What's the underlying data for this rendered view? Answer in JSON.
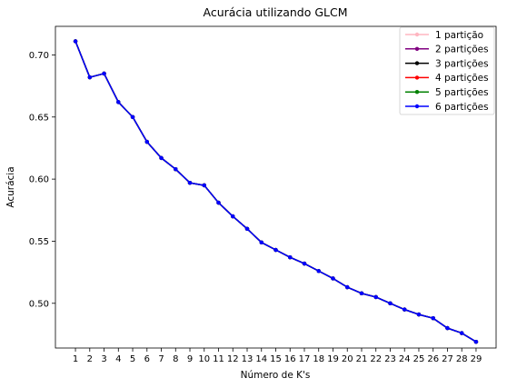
{
  "chart_data": {
    "type": "line",
    "title": "Acurácia utilizando GLCM",
    "xlabel": "Número de K's",
    "ylabel": "Acurácia",
    "x": [
      1,
      2,
      3,
      4,
      5,
      6,
      7,
      8,
      9,
      10,
      11,
      12,
      13,
      14,
      15,
      16,
      17,
      18,
      19,
      20,
      21,
      22,
      23,
      24,
      25,
      26,
      27,
      28,
      29
    ],
    "xlim": [
      -0.4,
      30.4
    ],
    "ylim": [
      0.464,
      0.723
    ],
    "yticks": [
      0.5,
      0.55,
      0.6,
      0.65,
      0.7
    ],
    "ytick_labels": [
      "0.50",
      "0.55",
      "0.60",
      "0.65",
      "0.70"
    ],
    "grid": false,
    "legend_position": "top-right",
    "series": [
      {
        "name": "1 partição",
        "color": "#ffb6c1",
        "values": [
          0.711,
          0.682,
          0.685,
          0.662,
          0.65,
          0.63,
          0.617,
          0.608,
          0.597,
          0.595,
          0.581,
          0.57,
          0.56,
          0.549,
          0.543,
          0.537,
          0.532,
          0.526,
          0.52,
          0.513,
          0.508,
          0.505,
          0.5,
          0.495,
          0.491,
          0.488,
          0.48,
          0.476,
          0.469
        ]
      },
      {
        "name": "2 partições",
        "color": "#800080",
        "values": [
          0.711,
          0.682,
          0.685,
          0.662,
          0.65,
          0.63,
          0.617,
          0.608,
          0.597,
          0.595,
          0.581,
          0.57,
          0.56,
          0.549,
          0.543,
          0.537,
          0.532,
          0.526,
          0.52,
          0.513,
          0.508,
          0.505,
          0.5,
          0.495,
          0.491,
          0.488,
          0.48,
          0.476,
          0.469
        ]
      },
      {
        "name": "3 partições",
        "color": "#000000",
        "values": [
          0.711,
          0.682,
          0.685,
          0.662,
          0.65,
          0.63,
          0.617,
          0.608,
          0.597,
          0.595,
          0.581,
          0.57,
          0.56,
          0.549,
          0.543,
          0.537,
          0.532,
          0.526,
          0.52,
          0.513,
          0.508,
          0.505,
          0.5,
          0.495,
          0.491,
          0.488,
          0.48,
          0.476,
          0.469
        ]
      },
      {
        "name": "4 partições",
        "color": "#ff0000",
        "values": [
          0.711,
          0.682,
          0.685,
          0.662,
          0.65,
          0.63,
          0.617,
          0.608,
          0.597,
          0.595,
          0.581,
          0.57,
          0.56,
          0.549,
          0.543,
          0.537,
          0.532,
          0.526,
          0.52,
          0.513,
          0.508,
          0.505,
          0.5,
          0.495,
          0.491,
          0.488,
          0.48,
          0.476,
          0.469
        ]
      },
      {
        "name": "5 partições",
        "color": "#008000",
        "values": [
          0.711,
          0.682,
          0.685,
          0.662,
          0.65,
          0.63,
          0.617,
          0.608,
          0.597,
          0.595,
          0.581,
          0.57,
          0.56,
          0.549,
          0.543,
          0.537,
          0.532,
          0.526,
          0.52,
          0.513,
          0.508,
          0.505,
          0.5,
          0.495,
          0.491,
          0.488,
          0.48,
          0.476,
          0.469
        ]
      },
      {
        "name": "6 partições",
        "color": "#0000ff",
        "values": [
          0.711,
          0.682,
          0.685,
          0.662,
          0.65,
          0.63,
          0.617,
          0.608,
          0.597,
          0.595,
          0.581,
          0.57,
          0.56,
          0.549,
          0.543,
          0.537,
          0.532,
          0.526,
          0.52,
          0.513,
          0.508,
          0.505,
          0.5,
          0.495,
          0.491,
          0.488,
          0.48,
          0.476,
          0.469
        ]
      }
    ]
  }
}
